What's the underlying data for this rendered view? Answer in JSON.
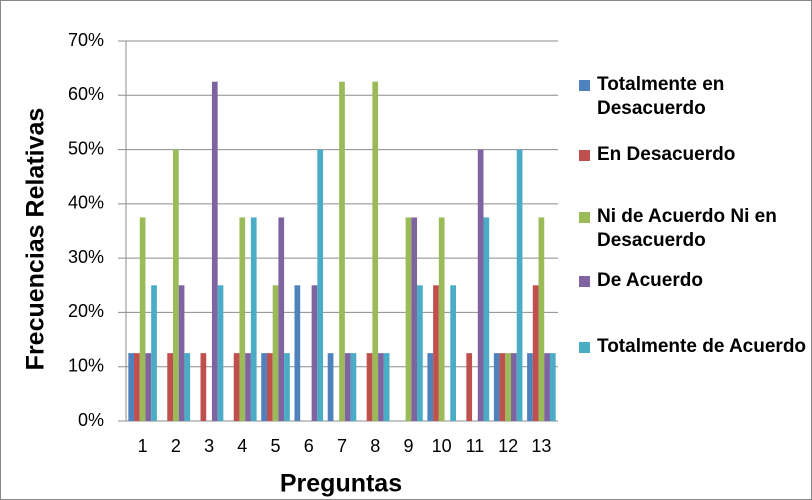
{
  "chart_data": {
    "type": "bar",
    "x_label": "Preguntas",
    "y_label": "Frecuencias Relativas",
    "categories": [
      "1",
      "2",
      "3",
      "4",
      "5",
      "6",
      "7",
      "8",
      "9",
      "10",
      "11",
      "12",
      "13"
    ],
    "series": [
      {
        "name": "Totalmente en Desacuerdo",
        "color": "#4f81bd",
        "values": [
          12.5,
          0,
          0,
          0,
          12.5,
          25,
          12.5,
          0,
          0,
          12.5,
          0,
          12.5,
          12.5
        ]
      },
      {
        "name": "En Desacuerdo",
        "color": "#c0504d",
        "values": [
          12.5,
          12.5,
          12.5,
          12.5,
          12.5,
          0,
          0,
          12.5,
          0,
          25,
          12.5,
          12.5,
          25
        ]
      },
      {
        "name": "Ni de Acuerdo Ni en Desacuerdo",
        "color": "#9bbb59",
        "values": [
          37.5,
          50,
          0,
          37.5,
          25,
          0,
          62.5,
          62.5,
          37.5,
          37.5,
          0,
          12.5,
          37.5
        ]
      },
      {
        "name": "De Acuerdo",
        "color": "#8064a2",
        "values": [
          12.5,
          25,
          62.5,
          12.5,
          37.5,
          25,
          12.5,
          12.5,
          37.5,
          0,
          50,
          12.5,
          12.5
        ]
      },
      {
        "name": "Totalmente de Acuerdo",
        "color": "#4bacc6",
        "values": [
          25,
          12.5,
          25,
          37.5,
          12.5,
          50,
          12.5,
          12.5,
          25,
          25,
          37.5,
          50,
          12.5
        ]
      }
    ],
    "ylim": [
      0,
      70
    ],
    "yticks": [
      {
        "value": 0,
        "label": "0%"
      },
      {
        "value": 10,
        "label": "10%"
      },
      {
        "value": 20,
        "label": "20%"
      },
      {
        "value": 30,
        "label": "30%"
      },
      {
        "value": 40,
        "label": "40%"
      },
      {
        "value": 50,
        "label": "50%"
      },
      {
        "value": 60,
        "label": "60%"
      },
      {
        "value": 70,
        "label": "70%"
      }
    ],
    "grid": true
  }
}
